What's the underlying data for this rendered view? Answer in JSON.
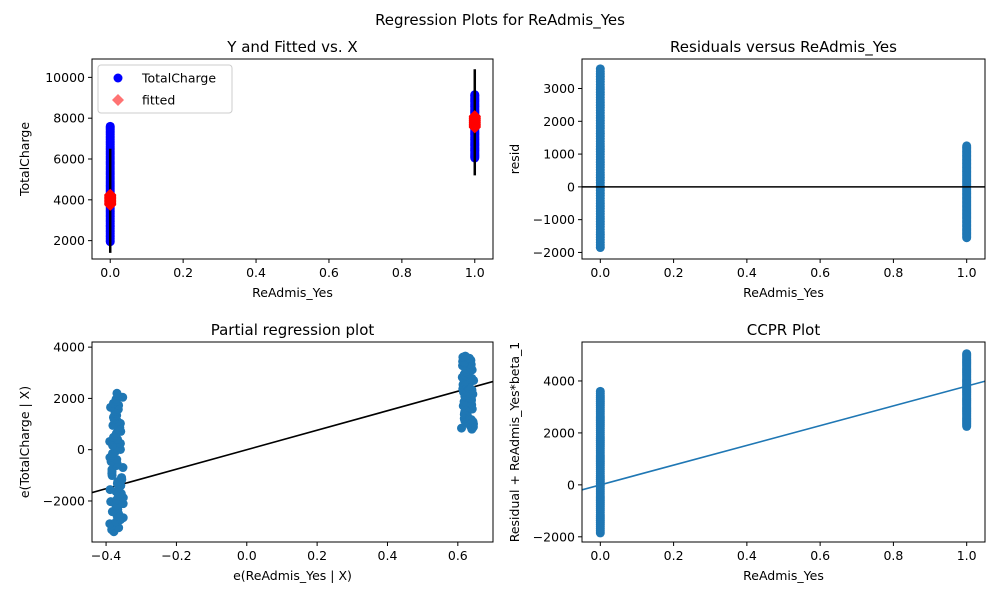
{
  "suptitle": "Regression Plots for ReAdmis_Yes",
  "colors": {
    "scatter_blue": "#1f77b4",
    "data_blue": "#0000ff",
    "fitted_red": "#ff0000",
    "errorbar": "#000000",
    "fit_line_black": "#000000",
    "ccpr_line": "#1f77b4"
  },
  "chart_data": [
    {
      "id": "fit",
      "type": "scatter",
      "title": "Y and Fitted vs. X",
      "xlabel": "ReAdmis_Yes",
      "ylabel": "TotalCharge",
      "xlim": [
        -0.05,
        1.05
      ],
      "ylim": [
        1100,
        10900
      ],
      "xticks": [
        0.0,
        0.2,
        0.4,
        0.6,
        0.8,
        1.0
      ],
      "xtick_labels": [
        "0.0",
        "0.2",
        "0.4",
        "0.6",
        "0.8",
        "1.0"
      ],
      "yticks": [
        2000,
        4000,
        6000,
        8000,
        10000
      ],
      "ytick_labels": [
        "2000",
        "4000",
        "6000",
        "8000",
        "10000"
      ],
      "legend": {
        "placement": "upper-left",
        "entries": [
          {
            "label": "TotalCharge",
            "marker": "circle",
            "color": "#0000ff"
          },
          {
            "label": "fitted",
            "marker": "diamond",
            "color": "#ff0000"
          }
        ]
      },
      "series": [
        {
          "name": "TotalCharge",
          "marker": "circle",
          "color": "#0000ff",
          "groups": [
            {
              "x": 0.0,
              "ymin": 1950,
              "ymax": 7600
            },
            {
              "x": 1.0,
              "ymin": 6050,
              "ymax": 9150
            }
          ]
        },
        {
          "name": "fitted",
          "marker": "diamond",
          "color": "#ff0000",
          "groups": [
            {
              "x": 0.0,
              "ymin": 3750,
              "ymax": 4250
            },
            {
              "x": 1.0,
              "ymin": 7550,
              "ymax": 8100
            }
          ]
        }
      ],
      "errorbars": [
        {
          "x": 0.0,
          "ymin": 1400,
          "ymax": 6500
        },
        {
          "x": 1.0,
          "ymin": 5200,
          "ymax": 10400
        }
      ]
    },
    {
      "id": "resid",
      "type": "scatter",
      "title": "Residuals versus ReAdmis_Yes",
      "xlabel": "ReAdmis_Yes",
      "ylabel": "resid",
      "xlim": [
        -0.05,
        1.05
      ],
      "ylim": [
        -2200,
        3900
      ],
      "xticks": [
        0.0,
        0.2,
        0.4,
        0.6,
        0.8,
        1.0
      ],
      "xtick_labels": [
        "0.0",
        "0.2",
        "0.4",
        "0.6",
        "0.8",
        "1.0"
      ],
      "yticks": [
        -2000,
        -1000,
        0,
        1000,
        2000,
        3000
      ],
      "ytick_labels": [
        "−2000",
        "−1000",
        "0",
        "1000",
        "2000",
        "3000"
      ],
      "hline": 0,
      "series": [
        {
          "marker": "circle",
          "color": "#1f77b4",
          "groups": [
            {
              "x": 0.0,
              "ymin": -1850,
              "ymax": 3600
            },
            {
              "x": 1.0,
              "ymin": -1550,
              "ymax": 1250
            }
          ]
        }
      ]
    },
    {
      "id": "partreg",
      "type": "scatter",
      "title": "Partial regression plot",
      "xlabel": "e(ReAdmis_Yes | X)",
      "ylabel": "e(TotalCharge | X)",
      "xlim": [
        -0.44,
        0.7
      ],
      "ylim": [
        -3600,
        4200
      ],
      "xticks": [
        -0.4,
        -0.2,
        0.0,
        0.2,
        0.4,
        0.6
      ],
      "xtick_labels": [
        "−0.4",
        "−0.2",
        "0.0",
        "0.2",
        "0.4",
        "0.6"
      ],
      "yticks": [
        -2000,
        0,
        2000,
        4000
      ],
      "ytick_labels": [
        "−2000",
        "0",
        "2000",
        "4000"
      ],
      "fit_line": {
        "slope": 3800,
        "intercept": 0
      },
      "series": [
        {
          "marker": "circle",
          "color": "#1f77b4",
          "groups": [
            {
              "xmin": -0.39,
              "xmax": -0.35,
              "ymin": -3200,
              "ymax": 2200
            },
            {
              "xmin": 0.61,
              "xmax": 0.645,
              "ymin": 800,
              "ymax": 3650
            }
          ]
        }
      ]
    },
    {
      "id": "ccpr",
      "type": "scatter",
      "title": "CCPR Plot",
      "xlabel": "ReAdmis_Yes",
      "ylabel": "Residual + ReAdmis_Yes*beta_1",
      "xlim": [
        -0.05,
        1.05
      ],
      "ylim": [
        -2200,
        5500
      ],
      "xticks": [
        0.0,
        0.2,
        0.4,
        0.6,
        0.8,
        1.0
      ],
      "xtick_labels": [
        "0.0",
        "0.2",
        "0.4",
        "0.6",
        "0.8",
        "1.0"
      ],
      "yticks": [
        -2000,
        0,
        2000,
        4000
      ],
      "ytick_labels": [
        "−2000",
        "0",
        "2000",
        "4000"
      ],
      "fit_line": {
        "slope": 3800,
        "intercept": 0
      },
      "series": [
        {
          "marker": "circle",
          "color": "#1f77b4",
          "groups": [
            {
              "x": 0.0,
              "ymin": -1850,
              "ymax": 3600
            },
            {
              "x": 1.0,
              "ymin": 2250,
              "ymax": 5050
            }
          ]
        }
      ]
    }
  ]
}
